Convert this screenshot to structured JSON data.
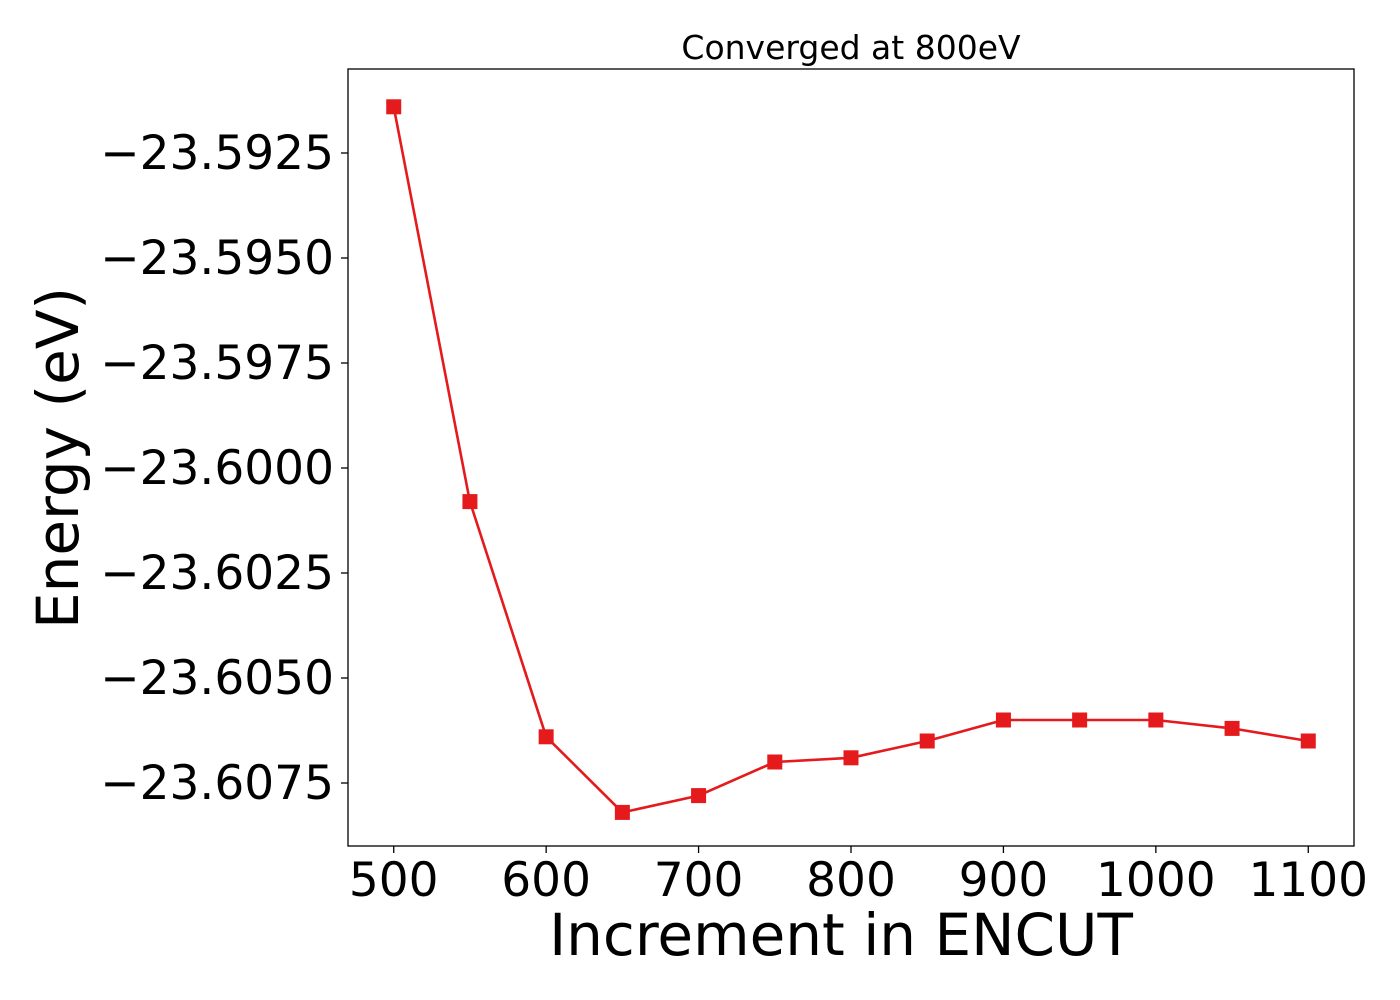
{
  "chart_data": {
    "type": "line",
    "title": "Converged at 800eV",
    "xlabel": "Increment in ENCUT",
    "ylabel": "Energy (eV)",
    "x": [
      500,
      550,
      600,
      650,
      700,
      750,
      800,
      850,
      900,
      950,
      1000,
      1050,
      1100
    ],
    "series": [
      {
        "color": "#e41a1c",
        "marker": "square",
        "values": [
          -23.5914,
          -23.6008,
          -23.6064,
          -23.6082,
          -23.6078,
          -23.607,
          -23.6069,
          -23.6065,
          -23.606,
          -23.606,
          -23.606,
          -23.6062,
          -23.6065
        ]
      }
    ],
    "xlim": [
      470,
      1130
    ],
    "ylim": [
      -23.609,
      -23.5905
    ],
    "xticks": [
      500,
      600,
      700,
      800,
      900,
      1000,
      1100
    ],
    "xtick_labels": [
      "500",
      "600",
      "700",
      "800",
      "900",
      "1000",
      "1100"
    ],
    "yticks": [
      -23.6075,
      -23.605,
      -23.6025,
      -23.6,
      -23.5975,
      -23.595,
      -23.5925
    ],
    "ytick_labels": [
      "−23.6075",
      "−23.6050",
      "−23.6025",
      "−23.6000",
      "−23.5975",
      "−23.5950",
      "−23.5925"
    ],
    "grid": false,
    "legend": false
  }
}
